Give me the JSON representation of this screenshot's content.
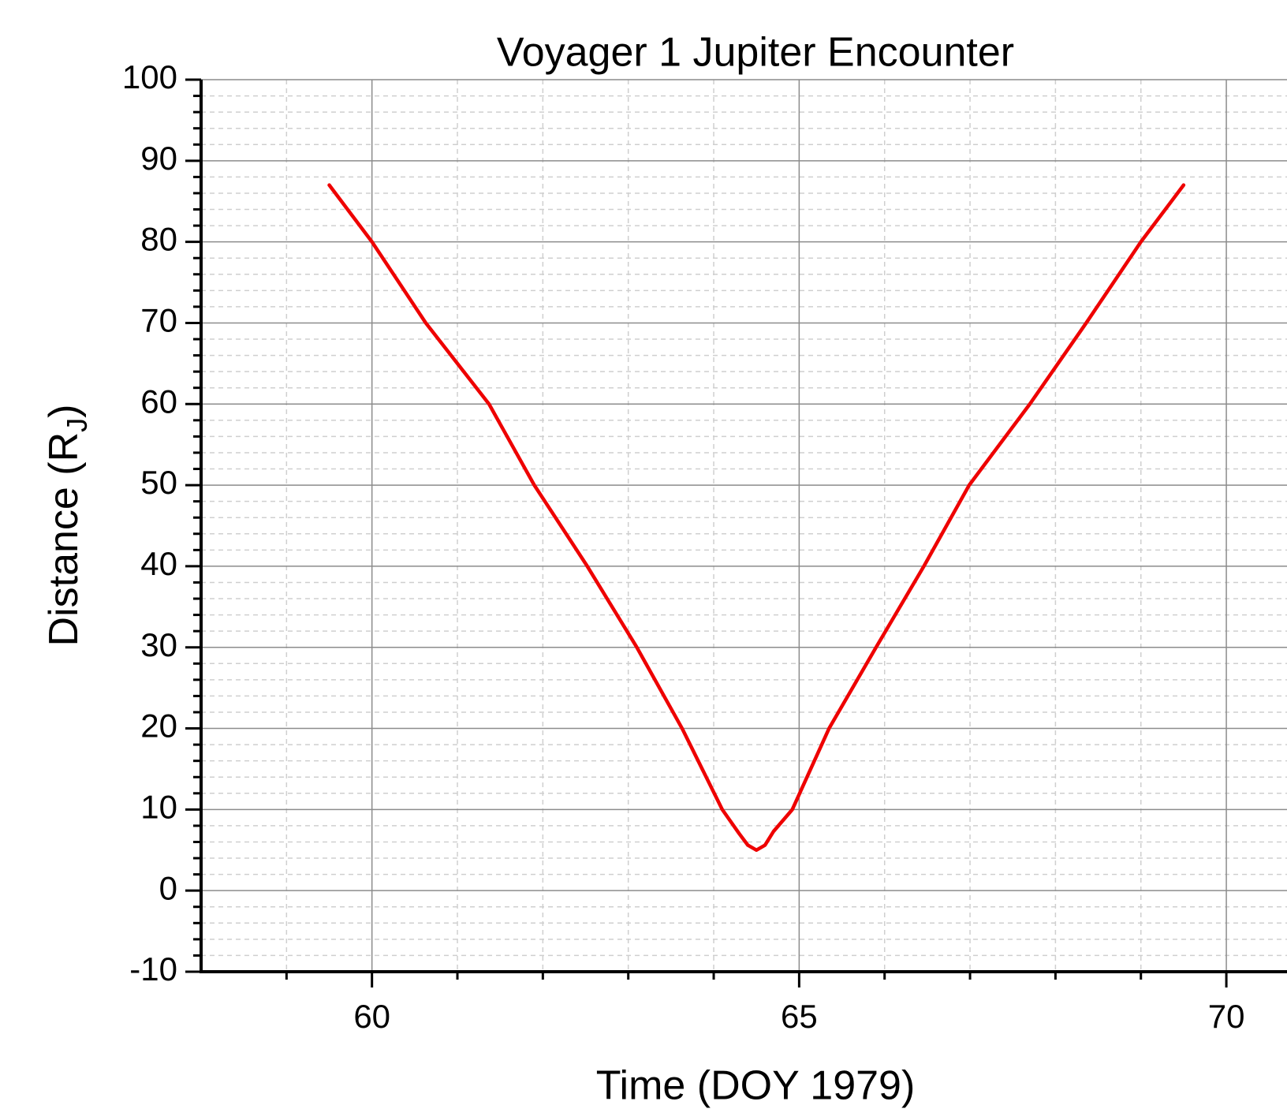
{
  "chart_data": {
    "type": "line",
    "title": "Voyager 1 Jupiter Encounter",
    "xlabel": "Time (DOY 1979)",
    "ylabel": [
      "Distance (R",
      "J",
      ")"
    ],
    "x": [
      59.5,
      60,
      60.63,
      61.37,
      61.9,
      62.52,
      63.1,
      63.63,
      64.1,
      64.3,
      64.4,
      64.5,
      64.6,
      64.7,
      64.92,
      65.35,
      65.9,
      66.46,
      66.99,
      67.7,
      68.36,
      69.0,
      69.5
    ],
    "series": [
      {
        "name": "Distance",
        "color": "#ee0000",
        "values": [
          87,
          80,
          70,
          60,
          50,
          40,
          30,
          20,
          10,
          7,
          5.6,
          5,
          5.6,
          7.3,
          10,
          20,
          30,
          40,
          50,
          60,
          70,
          80,
          87
        ]
      }
    ],
    "xlim": [
      58,
      70.71
    ],
    "ylim": [
      -10,
      100
    ],
    "xticks": [
      60,
      65,
      70
    ],
    "yticks": [
      -10,
      0,
      10,
      20,
      30,
      40,
      50,
      60,
      70,
      80,
      90,
      100
    ],
    "xminor": [
      59,
      61,
      62,
      63,
      64,
      66,
      67,
      68,
      69
    ],
    "yminor": [
      -8,
      -6,
      -4,
      -2,
      2,
      4,
      6,
      8,
      12,
      14,
      16,
      18,
      22,
      24,
      26,
      28,
      32,
      34,
      36,
      38,
      42,
      44,
      46,
      48,
      52,
      54,
      56,
      58,
      62,
      64,
      66,
      68,
      72,
      74,
      76,
      78,
      82,
      84,
      86,
      88,
      92,
      94,
      96,
      98
    ],
    "grid": true
  }
}
